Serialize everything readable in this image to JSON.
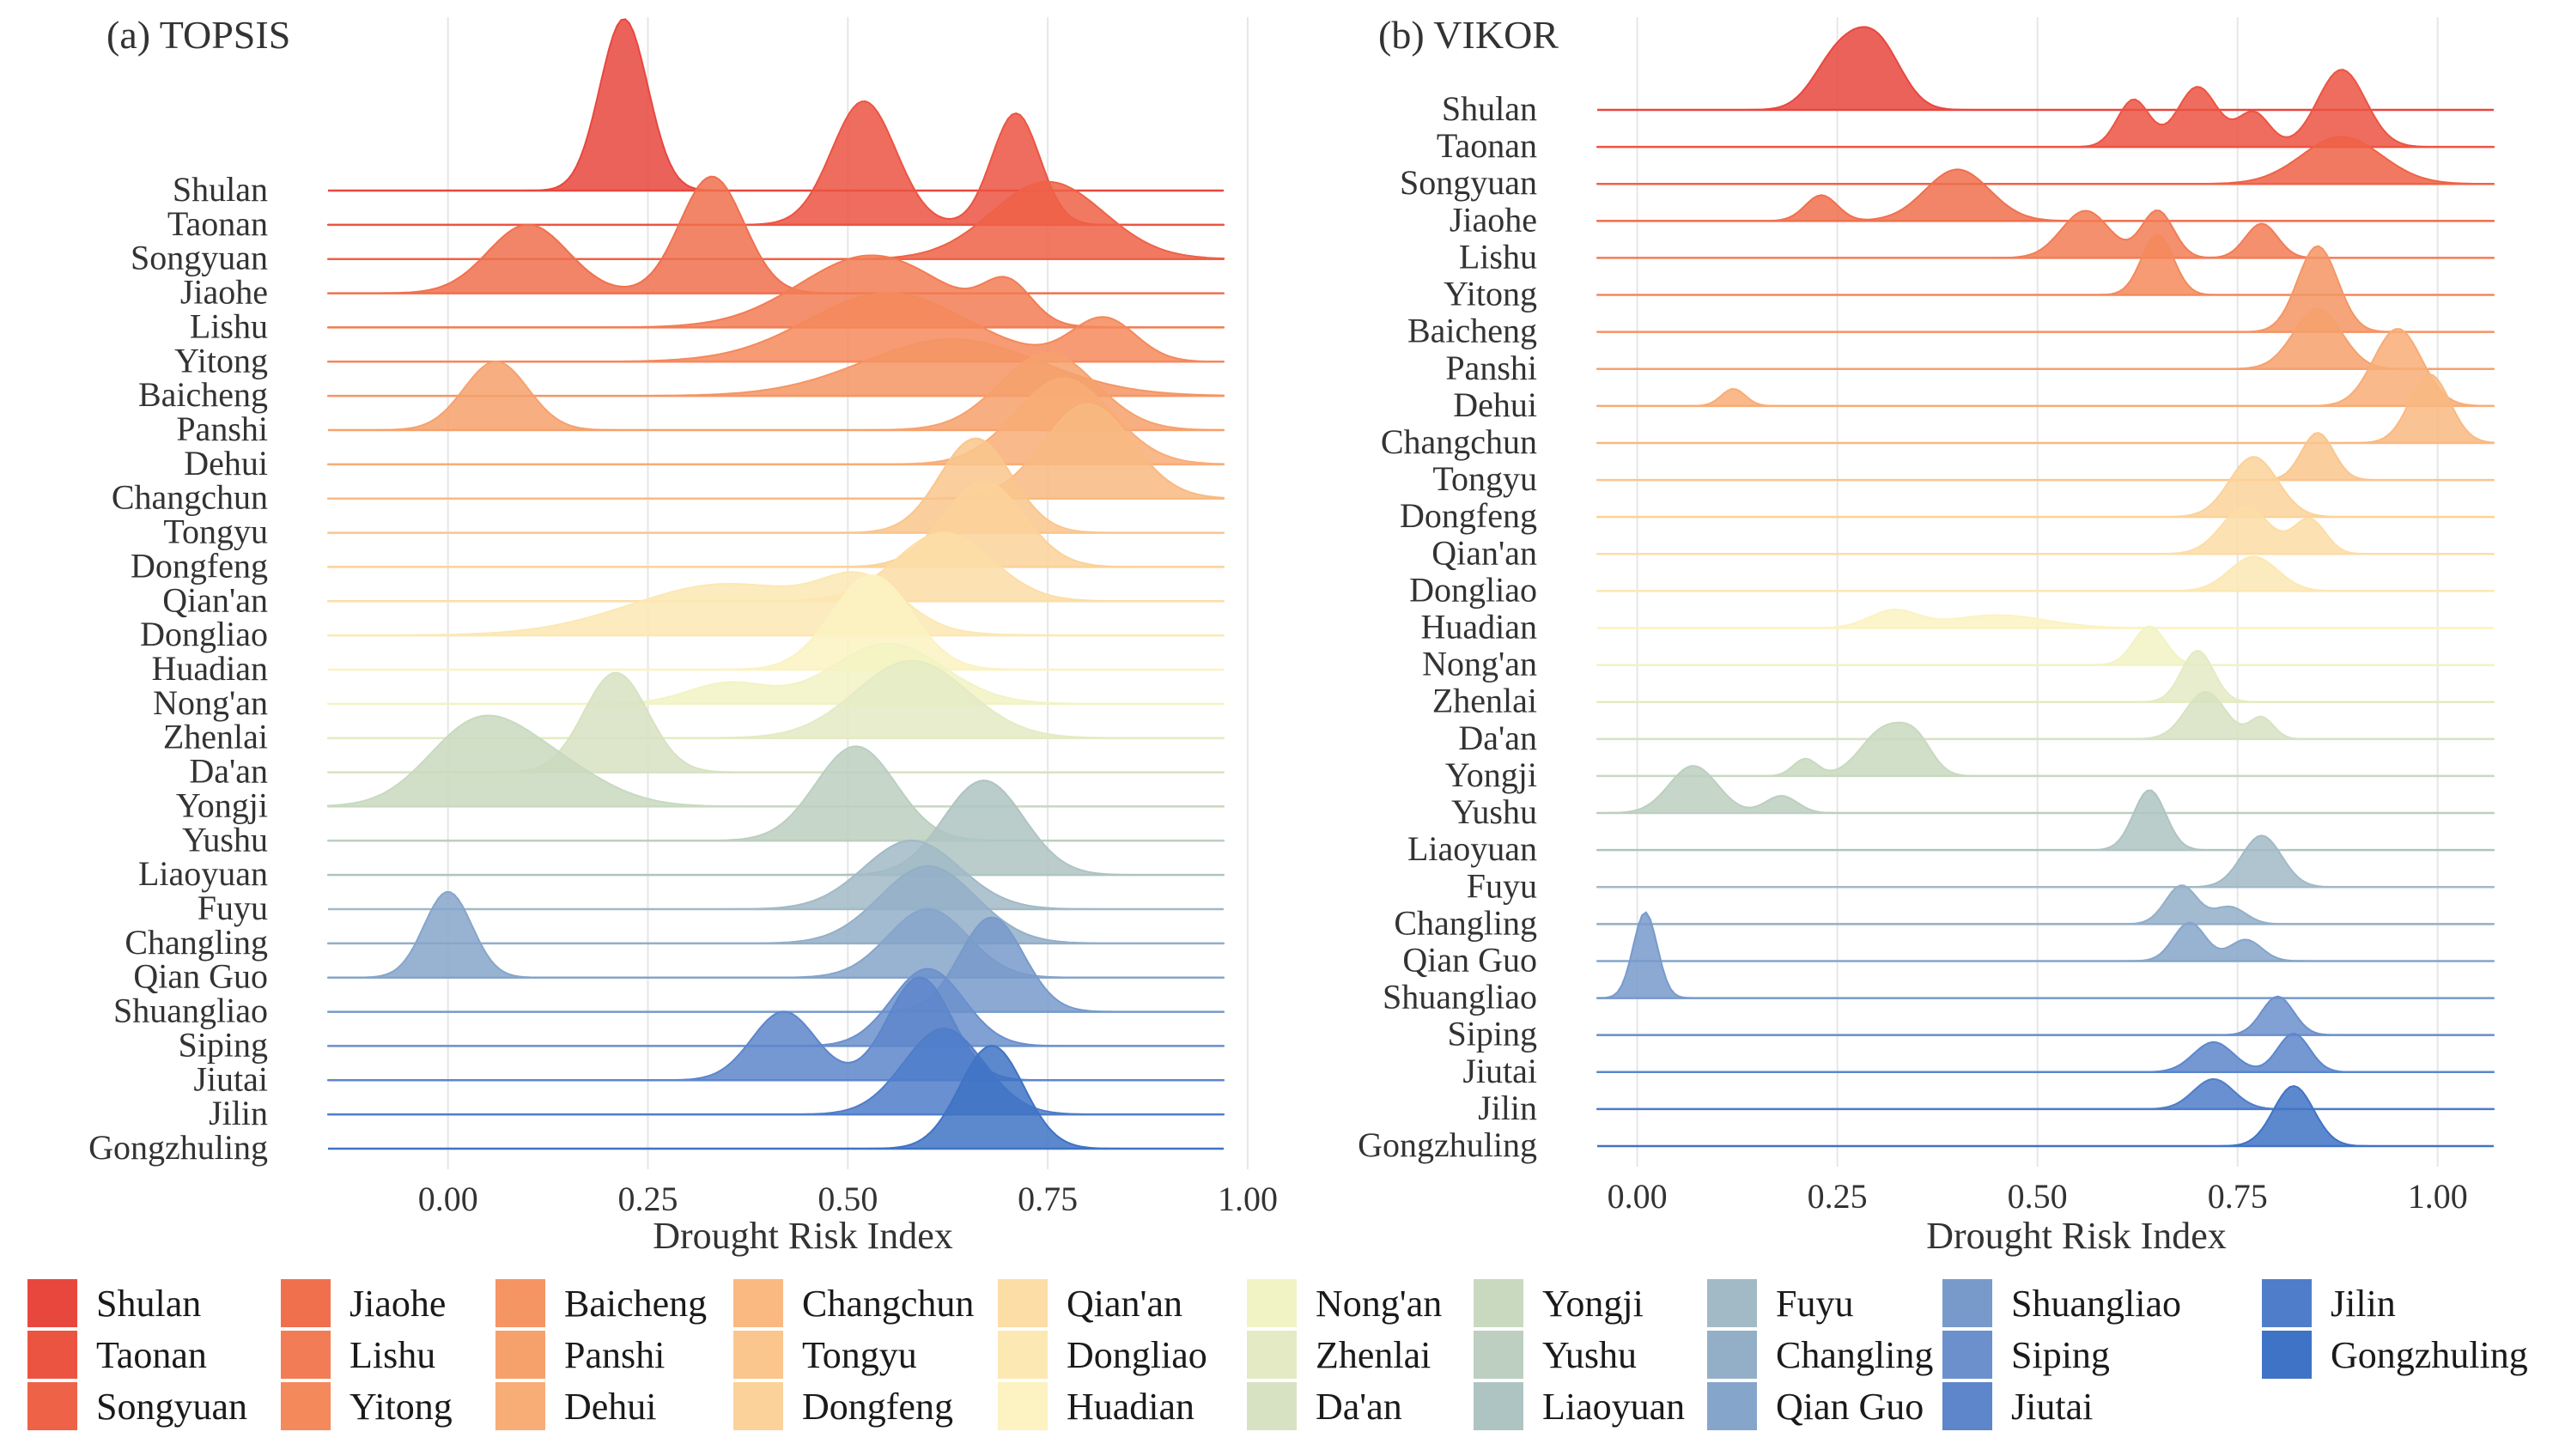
{
  "chart_data": [
    {
      "type": "ridgeline",
      "title": "(a) TOPSIS",
      "xlabel": "Drought Risk Index",
      "ylabel": "",
      "xlim": [
        -0.15,
        0.97
      ],
      "xticks": [
        "0.00",
        "0.25",
        "0.50",
        "0.75",
        "1.00"
      ],
      "xtick_values": [
        0.0,
        0.25,
        0.5,
        0.75,
        1.0
      ],
      "grid": true,
      "series": [
        {
          "name": "Shulan",
          "peaks": [
            [
              0.22,
              0.03,
              1.0
            ]
          ]
        },
        {
          "name": "Taonan",
          "peaks": [
            [
              0.52,
              0.04,
              0.72
            ],
            [
              0.71,
              0.03,
              0.65
            ]
          ]
        },
        {
          "name": "Songyuan",
          "peaks": [
            [
              0.75,
              0.07,
              0.45
            ]
          ]
        },
        {
          "name": "Jiaohe",
          "peaks": [
            [
              0.1,
              0.05,
              0.4
            ],
            [
              0.33,
              0.04,
              0.68
            ]
          ]
        },
        {
          "name": "Lishu",
          "peaks": [
            [
              0.53,
              0.09,
              0.42
            ],
            [
              0.7,
              0.03,
              0.22
            ]
          ]
        },
        {
          "name": "Yitong",
          "peaks": [
            [
              0.55,
              0.1,
              0.4
            ],
            [
              0.82,
              0.04,
              0.25
            ]
          ]
        },
        {
          "name": "Baicheng",
          "peaks": [
            [
              0.63,
              0.11,
              0.33
            ]
          ]
        },
        {
          "name": "Panshi",
          "peaks": [
            [
              0.06,
              0.04,
              0.4
            ],
            [
              0.75,
              0.06,
              0.45
            ]
          ]
        },
        {
          "name": "Dehui",
          "peaks": [
            [
              0.77,
              0.06,
              0.5
            ]
          ]
        },
        {
          "name": "Changchun",
          "peaks": [
            [
              0.8,
              0.055,
              0.55
            ]
          ]
        },
        {
          "name": "Tongyu",
          "peaks": [
            [
              0.66,
              0.045,
              0.55
            ]
          ]
        },
        {
          "name": "Dongfeng",
          "peaks": [
            [
              0.67,
              0.05,
              0.5
            ]
          ]
        },
        {
          "name": "Qian'an",
          "peaks": [
            [
              0.62,
              0.06,
              0.4
            ]
          ]
        },
        {
          "name": "Dongliao",
          "peaks": [
            [
              0.35,
              0.12,
              0.3
            ],
            [
              0.52,
              0.05,
              0.25
            ]
          ]
        },
        {
          "name": "Huadian",
          "peaks": [
            [
              0.53,
              0.05,
              0.55
            ]
          ]
        },
        {
          "name": "Nong'an",
          "peaks": [
            [
              0.35,
              0.05,
              0.12
            ],
            [
              0.55,
              0.07,
              0.35
            ]
          ]
        },
        {
          "name": "Zhenlai",
          "peaks": [
            [
              0.58,
              0.07,
              0.45
            ]
          ]
        },
        {
          "name": "Da'an",
          "peaks": [
            [
              0.21,
              0.04,
              0.58
            ]
          ]
        },
        {
          "name": "Yongji",
          "peaks": [
            [
              0.03,
              0.06,
              0.4
            ],
            [
              0.12,
              0.07,
              0.25
            ]
          ]
        },
        {
          "name": "Yushu",
          "peaks": [
            [
              0.51,
              0.05,
              0.55
            ]
          ]
        },
        {
          "name": "Liaoyuan",
          "peaks": [
            [
              0.67,
              0.05,
              0.55
            ]
          ]
        },
        {
          "name": "Fuyu",
          "peaks": [
            [
              0.58,
              0.06,
              0.4
            ]
          ]
        },
        {
          "name": "Changling",
          "peaks": [
            [
              0.6,
              0.06,
              0.45
            ]
          ]
        },
        {
          "name": "Qian Guo",
          "peaks": [
            [
              0.0,
              0.03,
              0.5
            ],
            [
              0.6,
              0.05,
              0.4
            ]
          ]
        },
        {
          "name": "Shuangliao",
          "peaks": [
            [
              0.68,
              0.04,
              0.55
            ]
          ]
        },
        {
          "name": "Siping",
          "peaks": [
            [
              0.6,
              0.045,
              0.45
            ]
          ]
        },
        {
          "name": "Jiutai",
          "peaks": [
            [
              0.42,
              0.04,
              0.4
            ],
            [
              0.59,
              0.04,
              0.6
            ]
          ]
        },
        {
          "name": "Jilin",
          "peaks": [
            [
              0.62,
              0.05,
              0.5
            ]
          ]
        },
        {
          "name": "Gongzhuling",
          "peaks": [
            [
              0.68,
              0.04,
              0.6
            ]
          ]
        }
      ]
    },
    {
      "type": "ridgeline",
      "title": "(b) VIKOR",
      "xlabel": "Drought Risk Index",
      "ylabel": "",
      "xlim": [
        -0.05,
        1.07
      ],
      "xticks": [
        "0.00",
        "0.25",
        "0.50",
        "0.75",
        "1.00"
      ],
      "xtick_values": [
        0.0,
        0.25,
        0.5,
        0.75,
        1.0
      ],
      "grid": true,
      "series": [
        {
          "name": "Shulan",
          "peaks": [
            [
              0.25,
              0.03,
              0.6
            ],
            [
              0.3,
              0.03,
              0.75
            ]
          ]
        },
        {
          "name": "Taonan",
          "peaks": [
            [
              0.62,
              0.02,
              0.55
            ],
            [
              0.7,
              0.025,
              0.7
            ],
            [
              0.77,
              0.02,
              0.4
            ],
            [
              0.88,
              0.03,
              0.9
            ]
          ]
        },
        {
          "name": "Songyuan",
          "peaks": [
            [
              0.88,
              0.05,
              0.55
            ]
          ]
        },
        {
          "name": "Jiaohe",
          "peaks": [
            [
              0.23,
              0.02,
              0.3
            ],
            [
              0.4,
              0.04,
              0.6
            ]
          ]
        },
        {
          "name": "Lishu",
          "peaks": [
            [
              0.56,
              0.03,
              0.55
            ],
            [
              0.65,
              0.02,
              0.55
            ],
            [
              0.78,
              0.02,
              0.4
            ]
          ]
        },
        {
          "name": "Yitong",
          "peaks": [
            [
              0.65,
              0.02,
              0.7
            ]
          ]
        },
        {
          "name": "Baicheng",
          "peaks": [
            [
              0.85,
              0.025,
              1.0
            ]
          ]
        },
        {
          "name": "Panshi",
          "peaks": [
            [
              0.85,
              0.03,
              0.7
            ]
          ]
        },
        {
          "name": "Dehui",
          "peaks": [
            [
              0.12,
              0.015,
              0.2
            ],
            [
              0.95,
              0.03,
              0.9
            ]
          ]
        },
        {
          "name": "Changchun",
          "peaks": [
            [
              0.99,
              0.025,
              0.8
            ]
          ]
        },
        {
          "name": "Tongyu",
          "peaks": [
            [
              0.85,
              0.02,
              0.55
            ]
          ]
        },
        {
          "name": "Dongfeng",
          "peaks": [
            [
              0.77,
              0.03,
              0.7
            ]
          ]
        },
        {
          "name": "Qian'an",
          "peaks": [
            [
              0.76,
              0.03,
              0.55
            ],
            [
              0.84,
              0.02,
              0.4
            ]
          ]
        },
        {
          "name": "Dongliao",
          "peaks": [
            [
              0.77,
              0.03,
              0.4
            ]
          ]
        },
        {
          "name": "Huadian",
          "peaks": [
            [
              0.32,
              0.03,
              0.2
            ],
            [
              0.45,
              0.06,
              0.15
            ]
          ]
        },
        {
          "name": "Nong'an",
          "peaks": [
            [
              0.64,
              0.02,
              0.45
            ]
          ]
        },
        {
          "name": "Zhenlai",
          "peaks": [
            [
              0.7,
              0.02,
              0.6
            ]
          ]
        },
        {
          "name": "Da'an",
          "peaks": [
            [
              0.71,
              0.025,
              0.55
            ],
            [
              0.78,
              0.015,
              0.25
            ]
          ]
        },
        {
          "name": "Yongji",
          "peaks": [
            [
              0.21,
              0.015,
              0.2
            ],
            [
              0.31,
              0.03,
              0.55
            ],
            [
              0.35,
              0.02,
              0.3
            ]
          ]
        },
        {
          "name": "Yushu",
          "peaks": [
            [
              0.07,
              0.03,
              0.55
            ],
            [
              0.18,
              0.02,
              0.2
            ]
          ]
        },
        {
          "name": "Liaoyuan",
          "peaks": [
            [
              0.64,
              0.02,
              0.7
            ]
          ]
        },
        {
          "name": "Fuyu",
          "peaks": [
            [
              0.78,
              0.025,
              0.6
            ]
          ]
        },
        {
          "name": "Changling",
          "peaks": [
            [
              0.68,
              0.02,
              0.45
            ],
            [
              0.74,
              0.02,
              0.2
            ]
          ]
        },
        {
          "name": "Qian Guo",
          "peaks": [
            [
              0.69,
              0.02,
              0.45
            ],
            [
              0.76,
              0.02,
              0.25
            ]
          ]
        },
        {
          "name": "Shuangliao",
          "peaks": [
            [
              0.01,
              0.015,
              1.0
            ]
          ]
        },
        {
          "name": "Siping",
          "peaks": [
            [
              0.8,
              0.02,
              0.45
            ]
          ]
        },
        {
          "name": "Jiutai",
          "peaks": [
            [
              0.82,
              0.02,
              0.45
            ],
            [
              0.72,
              0.025,
              0.35
            ]
          ]
        },
        {
          "name": "Jilin",
          "peaks": [
            [
              0.72,
              0.025,
              0.35
            ]
          ]
        },
        {
          "name": "Gongzhuling",
          "peaks": [
            [
              0.82,
              0.025,
              0.7
            ]
          ]
        }
      ]
    }
  ],
  "legend": {
    "groups": [
      [
        {
          "name": "Shulan",
          "color": "#e8473e"
        },
        {
          "name": "Taonan",
          "color": "#ec5442"
        },
        {
          "name": "Songyuan",
          "color": "#ee6247"
        }
      ],
      [
        {
          "name": "Jiaohe",
          "color": "#f0704e"
        },
        {
          "name": "Lishu",
          "color": "#f27c55"
        },
        {
          "name": "Yitong",
          "color": "#f4895c"
        }
      ],
      [
        {
          "name": "Baicheng",
          "color": "#f59564"
        },
        {
          "name": "Panshi",
          "color": "#f6a16c"
        },
        {
          "name": "Dehui",
          "color": "#f8ad76"
        }
      ],
      [
        {
          "name": "Changchun",
          "color": "#f9b981"
        },
        {
          "name": "Tongyu",
          "color": "#fac68d"
        },
        {
          "name": "Dongfeng",
          "color": "#fbd299"
        }
      ],
      [
        {
          "name": "Qian'an",
          "color": "#fcdda6"
        },
        {
          "name": "Dongliao",
          "color": "#fce8b3"
        },
        {
          "name": "Huadian",
          "color": "#fcf2c2"
        }
      ],
      [
        {
          "name": "Nong'an",
          "color": "#f2f3c4"
        },
        {
          "name": "Zhenlai",
          "color": "#e4ebc4"
        },
        {
          "name": "Da'an",
          "color": "#d7e2c2"
        }
      ],
      [
        {
          "name": "Yongji",
          "color": "#c9d9c0"
        },
        {
          "name": "Yushu",
          "color": "#bccfc0"
        },
        {
          "name": "Liaoyuan",
          "color": "#aec4c2"
        }
      ],
      [
        {
          "name": "Fuyu",
          "color": "#a1bac6"
        },
        {
          "name": "Changling",
          "color": "#93afc8"
        },
        {
          "name": "Qian Guo",
          "color": "#86a5ca"
        }
      ],
      [
        {
          "name": "Shuangliao",
          "color": "#789acb"
        },
        {
          "name": "Siping",
          "color": "#6b90cc"
        },
        {
          "name": "Jiutai",
          "color": "#5d86cb"
        }
      ],
      [
        {
          "name": "Jilin",
          "color": "#4f7dc9"
        },
        {
          "name": "Gongzhuling",
          "color": "#3f73c5"
        }
      ]
    ]
  }
}
